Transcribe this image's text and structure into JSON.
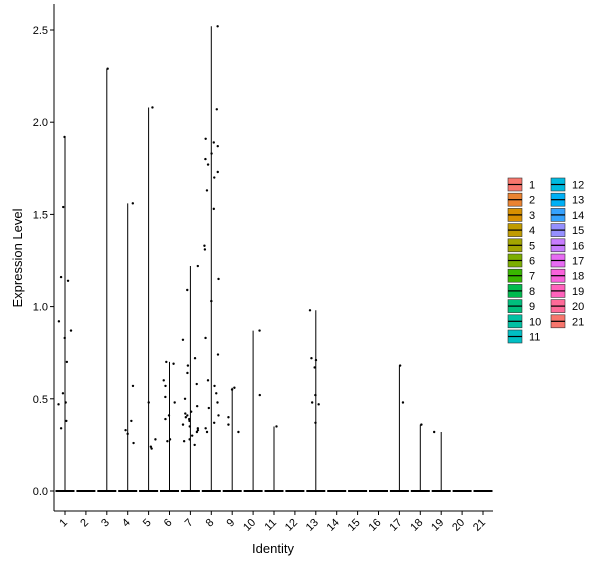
{
  "chart_data": {
    "type": "violin",
    "title": "",
    "xlabel": "Identity",
    "ylabel": "Expression Level",
    "ylim": [
      -0.12,
      2.6
    ],
    "yticks": [
      "0.0",
      "0.5",
      "1.0",
      "1.5",
      "2.0",
      "2.5"
    ],
    "grid": false,
    "legend_position": "right",
    "categories": [
      "1",
      "2",
      "3",
      "4",
      "5",
      "6",
      "7",
      "8",
      "9",
      "10",
      "11",
      "12",
      "13",
      "14",
      "15",
      "16",
      "17",
      "18",
      "19",
      "20",
      "21"
    ],
    "colors": [
      "#F8766D",
      "#EA8331",
      "#D89000",
      "#C09B00",
      "#A3A500",
      "#7CAE00",
      "#39B600",
      "#00BB4E",
      "#00BF7D",
      "#00C1A3",
      "#00BFC4",
      "#00BAE0",
      "#00B0F6",
      "#35A2FF",
      "#9590FF",
      "#C77CFF",
      "#E76BF3",
      "#FA62DB",
      "#FF62BC",
      "#FF6A98",
      "#F8766D"
    ],
    "max_values": [
      1.92,
      0.0,
      2.29,
      1.56,
      2.08,
      0.7,
      1.22,
      2.52,
      0.56,
      0.87,
      0.35,
      0.0,
      0.98,
      0.0,
      0.0,
      0.0,
      0.68,
      0.36,
      0.32,
      0.0,
      0.0
    ],
    "points": [
      {
        "cat": "1",
        "values": [
          1.92,
          1.54,
          1.16,
          1.14,
          0.92,
          0.87,
          0.83,
          0.7,
          0.53,
          0.48,
          0.47,
          0.38,
          0.34
        ]
      },
      {
        "cat": "3",
        "values": [
          2.29
        ]
      },
      {
        "cat": "4",
        "values": [
          1.56,
          0.57,
          0.38,
          0.33,
          0.31,
          0.26
        ]
      },
      {
        "cat": "5",
        "values": [
          2.08,
          0.48,
          0.28,
          0.24,
          0.23
        ]
      },
      {
        "cat": "6",
        "values": [
          0.7,
          0.69,
          0.6,
          0.57,
          0.51,
          0.48,
          0.41,
          0.39,
          0.28,
          0.27
        ]
      },
      {
        "cat": "7",
        "values": [
          1.22,
          1.09,
          0.82,
          0.72,
          0.68,
          0.64,
          0.58,
          0.5,
          0.46,
          0.43,
          0.42,
          0.41,
          0.4,
          0.39,
          0.38,
          0.36,
          0.35,
          0.34,
          0.33,
          0.32,
          0.3,
          0.28,
          0.27,
          0.25
        ]
      },
      {
        "cat": "8",
        "values": [
          2.52,
          2.07,
          1.91,
          1.89,
          1.87,
          1.83,
          1.8,
          1.77,
          1.73,
          1.7,
          1.63,
          1.53,
          1.33,
          1.31,
          1.15,
          1.03,
          0.83,
          0.74,
          0.6,
          0.57,
          0.53,
          0.48,
          0.45,
          0.41,
          0.37,
          0.34,
          0.32
        ]
      },
      {
        "cat": "9",
        "values": [
          0.56,
          0.55,
          0.4,
          0.36,
          0.32
        ]
      },
      {
        "cat": "10",
        "values": [
          0.87,
          0.52
        ]
      },
      {
        "cat": "11",
        "values": [
          0.35
        ]
      },
      {
        "cat": "13",
        "values": [
          0.98,
          0.72,
          0.71,
          0.67,
          0.52,
          0.48,
          0.47,
          0.37
        ]
      },
      {
        "cat": "17",
        "values": [
          0.68,
          0.48
        ]
      },
      {
        "cat": "18",
        "values": [
          0.36
        ]
      },
      {
        "cat": "19",
        "values": [
          0.32
        ]
      }
    ]
  }
}
